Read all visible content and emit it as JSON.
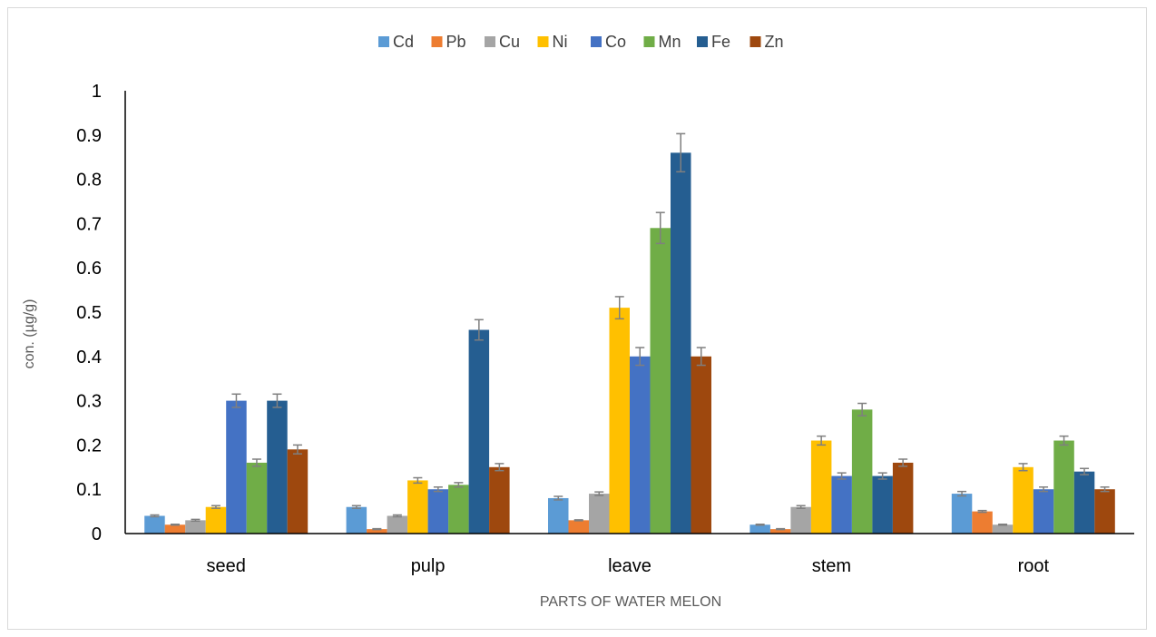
{
  "chart_data": {
    "type": "bar",
    "title": "",
    "xlabel": "PARTS OF WATER MELON",
    "ylabel": "con. (µg/g)",
    "ylim": [
      0,
      1
    ],
    "yticks": [
      "0",
      "0.1",
      "0.2",
      "0.3",
      "0.4",
      "0.5",
      "0.6",
      "0.7",
      "0.8",
      "0.9",
      "1"
    ],
    "grid": false,
    "legend_position": "top",
    "categories": [
      "seed",
      "pulp",
      "leave",
      "stem",
      "root"
    ],
    "series": [
      {
        "name": "Cd",
        "color": "#5B9BD5",
        "values": [
          0.04,
          0.06,
          0.08,
          0.02,
          0.09
        ],
        "errors": [
          0.002,
          0.003,
          0.004,
          0.001,
          0.005
        ]
      },
      {
        "name": "Pb",
        "color": "#ED7D31",
        "values": [
          0.02,
          0.01,
          0.03,
          0.01,
          0.05
        ],
        "errors": [
          0.001,
          0.001,
          0.001,
          0.001,
          0.002
        ]
      },
      {
        "name": "Cu",
        "color": "#A5A5A5",
        "values": [
          0.03,
          0.04,
          0.09,
          0.06,
          0.02
        ],
        "errors": [
          0.002,
          0.002,
          0.004,
          0.003,
          0.001
        ]
      },
      {
        "name": "Ni",
        "color": "#FFC000",
        "values": [
          0.06,
          0.12,
          0.51,
          0.21,
          0.15
        ],
        "errors": [
          0.003,
          0.006,
          0.025,
          0.01,
          0.008
        ]
      },
      {
        "name": "Co",
        "color": "#4472C4",
        "values": [
          0.3,
          0.1,
          0.4,
          0.13,
          0.1
        ],
        "errors": [
          0.015,
          0.005,
          0.02,
          0.007,
          0.005
        ]
      },
      {
        "name": "Mn",
        "color": "#70AD47",
        "values": [
          0.16,
          0.11,
          0.69,
          0.28,
          0.21
        ],
        "errors": [
          0.008,
          0.005,
          0.035,
          0.014,
          0.01
        ]
      },
      {
        "name": "Fe",
        "color": "#255E91",
        "values": [
          0.3,
          0.46,
          0.86,
          0.13,
          0.14
        ],
        "errors": [
          0.015,
          0.023,
          0.043,
          0.007,
          0.007
        ]
      },
      {
        "name": "Zn",
        "color": "#9E480E",
        "values": [
          0.19,
          0.15,
          0.4,
          0.16,
          0.1
        ],
        "errors": [
          0.01,
          0.008,
          0.02,
          0.008,
          0.005
        ]
      }
    ]
  }
}
